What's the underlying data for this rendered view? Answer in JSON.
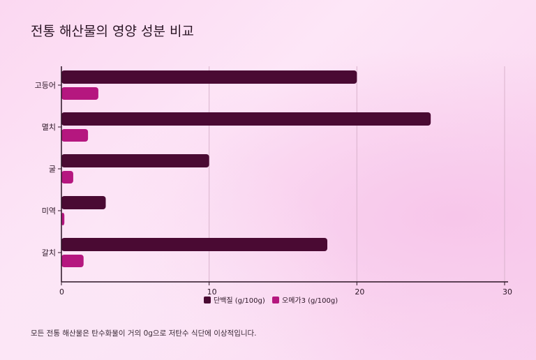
{
  "chart_data": {
    "type": "bar",
    "orientation": "horizontal",
    "title": "전통 해산물의 영양 성분 비교",
    "categories": [
      "고등어",
      "멸치",
      "굴",
      "미역",
      "갈치"
    ],
    "series": [
      {
        "name": "단백질 (g/100g)",
        "color": "#4a0a33",
        "values": [
          20,
          25,
          10,
          3,
          18
        ]
      },
      {
        "name": "오메가3 (g/100g)",
        "color": "#b5177f",
        "values": [
          2.5,
          1.8,
          0.8,
          0.2,
          1.5
        ]
      }
    ],
    "xlim": [
      0,
      30
    ],
    "xticks": [
      "0",
      "10",
      "20",
      "30"
    ],
    "xlabel": "",
    "ylabel": "",
    "grid": true,
    "legend_position": "bottom-center",
    "note": "모든 전통 해산물은 탄수화물이 거의 0g으로 저탄수 식단에 이상적입니다."
  }
}
